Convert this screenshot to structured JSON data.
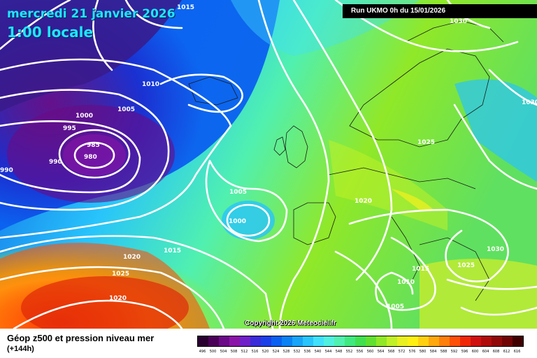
{
  "header": {
    "date": "mercredi 21 janvier 2026",
    "time": "1:00 locale",
    "run": "Run UKMO 0h du 15/01/2026"
  },
  "footer": {
    "copyright": "Copyright 2026 Meteociel.fr",
    "parameter": "Géop z500 et pression niveau mer",
    "lead": "(+144h)"
  },
  "isobar_labels": [
    "1015",
    "1030",
    "1010",
    "1005",
    "1000",
    "995",
    "985",
    "980",
    "990",
    "990",
    "1025",
    "1030",
    "1005",
    "1000",
    "1020",
    "1020",
    "1015",
    "1030",
    "1025",
    "1010",
    "1005",
    "1015",
    "1020",
    "1025",
    "1030"
  ],
  "scale": {
    "labels": [
      "496",
      "500",
      "504",
      "508",
      "512",
      "516",
      "520",
      "524",
      "528",
      "532",
      "536",
      "540",
      "544",
      "548",
      "552",
      "556",
      "560",
      "564",
      "568",
      "572",
      "576",
      "580",
      "584",
      "588",
      "592",
      "596",
      "600",
      "604",
      "608",
      "612",
      "616"
    ],
    "colors": [
      "#2a0030",
      "#4a0058",
      "#6a0a86",
      "#8a14a8",
      "#7020c8",
      "#3a2cd8",
      "#1c40e8",
      "#0a60f0",
      "#0a82f4",
      "#18a4f8",
      "#28c4fb",
      "#40e0fb",
      "#50f0e0",
      "#50f0b0",
      "#40e880",
      "#40e050",
      "#60e030",
      "#90e828",
      "#c0f028",
      "#e8f020",
      "#fff014",
      "#ffd010",
      "#ffa80c",
      "#ff800a",
      "#ff5008",
      "#f02808",
      "#d01010",
      "#b00c0c",
      "#900808",
      "#700404",
      "#400000"
    ]
  },
  "icons": {
    "map": "weather-map"
  }
}
